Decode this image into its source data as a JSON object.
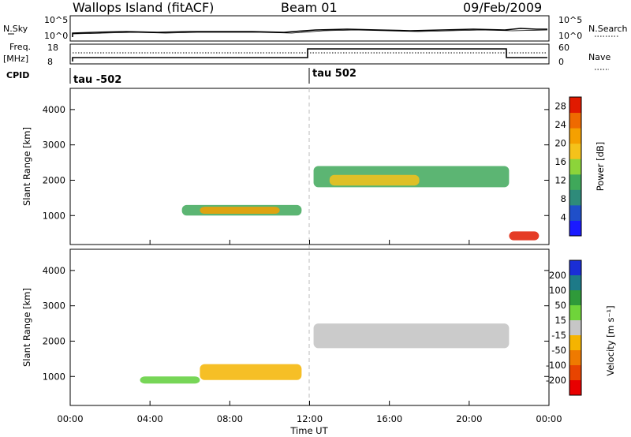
{
  "header": {
    "station": "Wallops Island (fitACF)",
    "beam": "Beam 01",
    "date": "09/Feb/2009"
  },
  "noise_panel": {
    "left_label": "N.Sky",
    "right_label": "N.Search",
    "left_ticks": [
      "10^5",
      "10^0"
    ],
    "right_ticks": [
      "10^5",
      "10^0"
    ]
  },
  "freq_panel": {
    "left_label": "Freq.",
    "left_unit": "[MHz]",
    "right_label": "Nave",
    "cpid_label": "CPID",
    "left_ticks": [
      "18",
      "8"
    ],
    "right_ticks": [
      "60",
      "0"
    ],
    "cpid_segments": [
      {
        "label": "tau -502",
        "start_hour": 0
      },
      {
        "label": "tau 502",
        "start_hour": 12
      }
    ]
  },
  "chart_data": [
    {
      "type": "heatmap",
      "name": "power",
      "xlabel": "",
      "ylabel": "Slant Range [km]",
      "xlim": [
        0,
        24
      ],
      "ylim": [
        180,
        4600
      ],
      "yticks": [
        1000,
        2000,
        3000,
        4000
      ],
      "xticks": [
        "00:00",
        "04:00",
        "08:00",
        "12:00",
        "16:00",
        "20:00",
        "00:00"
      ],
      "colorbar": {
        "label": "Power [dB]",
        "ticks": [
          "4",
          "8",
          "12",
          "16",
          "20",
          "24",
          "28"
        ],
        "range": [
          0,
          30
        ]
      },
      "regions": [
        {
          "x": [
            5.6,
            11.6
          ],
          "y": [
            1000,
            1300
          ],
          "value": 13
        },
        {
          "x": [
            6.5,
            10.5
          ],
          "y": [
            1050,
            1250
          ],
          "value": 20
        },
        {
          "x": [
            12.2,
            22.0
          ],
          "y": [
            1800,
            2400
          ],
          "value": 11
        },
        {
          "x": [
            13.0,
            17.5
          ],
          "y": [
            1850,
            2150
          ],
          "value": 19
        },
        {
          "x": [
            22.0,
            23.5
          ],
          "y": [
            300,
            550
          ],
          "value": 28
        }
      ]
    },
    {
      "type": "heatmap",
      "name": "velocity",
      "xlabel": "Time UT",
      "ylabel": "Slant Range [km]",
      "xlim": [
        0,
        24
      ],
      "ylim": [
        180,
        4600
      ],
      "yticks": [
        1000,
        2000,
        3000,
        4000
      ],
      "xticks": [
        "00:00",
        "04:00",
        "08:00",
        "12:00",
        "16:00",
        "20:00",
        "00:00"
      ],
      "colorbar": {
        "label": "Velocity [m s⁻¹]",
        "ticks": [
          "200",
          "100",
          "50",
          "15",
          "-15",
          "-50",
          "-100",
          "-200"
        ]
      },
      "regions": [
        {
          "x": [
            6.5,
            11.6
          ],
          "y": [
            900,
            1350
          ],
          "value": -40
        },
        {
          "x": [
            3.5,
            6.5
          ],
          "y": [
            800,
            1000
          ],
          "value": 40
        },
        {
          "x": [
            12.2,
            22.0
          ],
          "y": [
            1800,
            2500
          ],
          "value": 0
        }
      ]
    }
  ]
}
